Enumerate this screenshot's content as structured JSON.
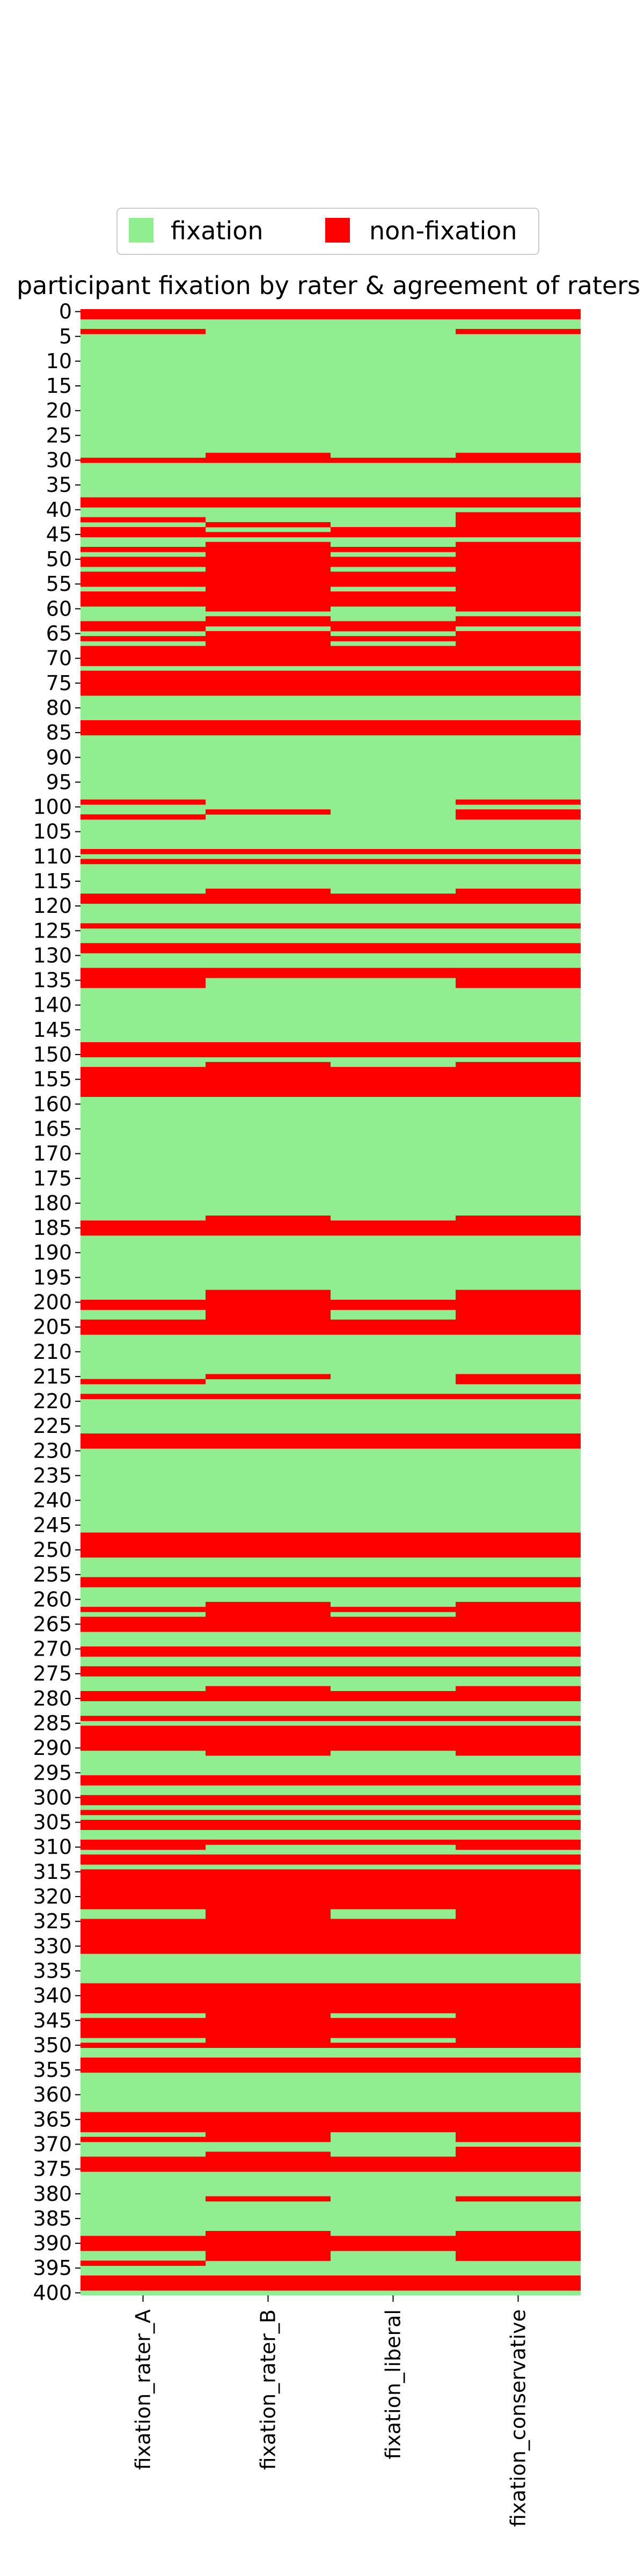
{
  "chart_data": {
    "type": "heatmap",
    "title": "participant fixation by rater & agreement of raters",
    "columns": [
      "fixation_rater_A",
      "fixation_rater_B",
      "fixation_liberal",
      "fixation_conservative"
    ],
    "legend": [
      {
        "label": "fixation",
        "color": "#90EE90"
      },
      {
        "label": "non-fixation",
        "color": "#FF0000"
      }
    ],
    "legend_position": "top-center",
    "y_range": [
      0,
      400
    ],
    "y_ticks": [
      0,
      5,
      10,
      15,
      20,
      25,
      30,
      35,
      40,
      45,
      50,
      55,
      60,
      65,
      70,
      75,
      80,
      85,
      90,
      95,
      100,
      105,
      110,
      115,
      120,
      125,
      130,
      135,
      140,
      145,
      150,
      155,
      160,
      165,
      170,
      175,
      180,
      185,
      190,
      195,
      200,
      205,
      210,
      215,
      220,
      225,
      230,
      235,
      240,
      245,
      250,
      255,
      260,
      265,
      270,
      275,
      280,
      285,
      290,
      295,
      300,
      305,
      310,
      315,
      320,
      325,
      330,
      335,
      340,
      345,
      350,
      355,
      360,
      365,
      370,
      375,
      380,
      385,
      390,
      395,
      400
    ],
    "y_tick_labels": [
      "0",
      "5",
      "10",
      "15",
      "20",
      "25",
      "30",
      "35",
      "40",
      "45",
      "50",
      "55",
      "60",
      "65",
      "70",
      "75",
      "80",
      "85",
      "90",
      "95",
      "100",
      "105",
      "110",
      "115",
      "120",
      "125",
      "130",
      "135",
      "140",
      "145",
      "150",
      "155",
      "160",
      "165",
      "170",
      "175",
      "180",
      "185",
      "190",
      "195",
      "200",
      "205",
      "210",
      "215",
      "220",
      "225",
      "230",
      "235",
      "240",
      "245",
      "250",
      "255",
      "260",
      "265",
      "270",
      "275",
      "280",
      "285",
      "290",
      "295",
      "300",
      "305",
      "310",
      "315",
      "320",
      "325",
      "330",
      "335",
      "340",
      "345",
      "350",
      "355",
      "360",
      "365",
      "370",
      "375",
      "380",
      "385",
      "390",
      "395",
      "400"
    ],
    "non_fixation_segments": {
      "fixation_rater_A": [
        [
          0,
          2
        ],
        [
          4,
          5
        ],
        [
          30,
          31
        ],
        [
          38,
          40
        ],
        [
          42,
          43
        ],
        [
          44,
          46
        ],
        [
          48,
          49
        ],
        [
          50,
          52
        ],
        [
          53,
          56
        ],
        [
          57,
          60
        ],
        [
          63,
          65
        ],
        [
          66,
          67
        ],
        [
          68,
          72
        ],
        [
          73,
          78
        ],
        [
          83,
          86
        ],
        [
          99,
          100
        ],
        [
          102,
          103
        ],
        [
          109,
          110
        ],
        [
          111,
          112
        ],
        [
          118,
          120
        ],
        [
          124,
          125
        ],
        [
          128,
          130
        ],
        [
          133,
          137
        ],
        [
          148,
          151
        ],
        [
          153,
          159
        ],
        [
          184,
          187
        ],
        [
          200,
          202
        ],
        [
          204,
          207
        ],
        [
          216,
          217
        ],
        [
          219,
          220
        ],
        [
          227,
          230
        ],
        [
          247,
          252
        ],
        [
          256,
          258
        ],
        [
          262,
          263
        ],
        [
          264,
          267
        ],
        [
          270,
          272
        ],
        [
          274,
          276
        ],
        [
          279,
          281
        ],
        [
          284,
          285
        ],
        [
          286,
          291
        ],
        [
          296,
          298
        ],
        [
          300,
          302
        ],
        [
          303,
          304
        ],
        [
          305,
          307
        ],
        [
          309,
          311
        ],
        [
          312,
          314
        ],
        [
          315,
          317
        ],
        [
          317,
          323
        ],
        [
          325,
          332
        ],
        [
          338,
          344
        ],
        [
          345,
          349
        ],
        [
          350,
          351
        ],
        [
          353,
          356
        ],
        [
          364,
          368
        ],
        [
          369,
          370
        ],
        [
          373,
          376
        ],
        [
          389,
          392
        ],
        [
          394,
          395
        ],
        [
          397,
          400
        ]
      ],
      "fixation_rater_B": [
        [
          0,
          2
        ],
        [
          29,
          31
        ],
        [
          38,
          40
        ],
        [
          43,
          44
        ],
        [
          45,
          46
        ],
        [
          47,
          50
        ],
        [
          50,
          61
        ],
        [
          62,
          64
        ],
        [
          65,
          72
        ],
        [
          73,
          78
        ],
        [
          83,
          86
        ],
        [
          101,
          102
        ],
        [
          109,
          110
        ],
        [
          111,
          112
        ],
        [
          117,
          120
        ],
        [
          124,
          125
        ],
        [
          128,
          130
        ],
        [
          133,
          135
        ],
        [
          148,
          151
        ],
        [
          152,
          159
        ],
        [
          183,
          187
        ],
        [
          198,
          207
        ],
        [
          215,
          216
        ],
        [
          219,
          220
        ],
        [
          227,
          230
        ],
        [
          247,
          252
        ],
        [
          256,
          258
        ],
        [
          261,
          267
        ],
        [
          270,
          272
        ],
        [
          274,
          276
        ],
        [
          278,
          281
        ],
        [
          284,
          285
        ],
        [
          286,
          292
        ],
        [
          296,
          298
        ],
        [
          300,
          302
        ],
        [
          303,
          304
        ],
        [
          305,
          307
        ],
        [
          309,
          310
        ],
        [
          312,
          314
        ],
        [
          315,
          332
        ],
        [
          338,
          349
        ],
        [
          349,
          351
        ],
        [
          353,
          356
        ],
        [
          364,
          370
        ],
        [
          372,
          376
        ],
        [
          381,
          382
        ],
        [
          388,
          394
        ],
        [
          397,
          400
        ]
      ],
      "fixation_liberal": [
        [
          0,
          2
        ],
        [
          30,
          31
        ],
        [
          38,
          40
        ],
        [
          44,
          46
        ],
        [
          48,
          49
        ],
        [
          50,
          52
        ],
        [
          53,
          56
        ],
        [
          57,
          60
        ],
        [
          63,
          65
        ],
        [
          66,
          67
        ],
        [
          68,
          72
        ],
        [
          73,
          78
        ],
        [
          83,
          86
        ],
        [
          109,
          110
        ],
        [
          111,
          112
        ],
        [
          118,
          120
        ],
        [
          124,
          125
        ],
        [
          128,
          130
        ],
        [
          133,
          135
        ],
        [
          148,
          151
        ],
        [
          153,
          159
        ],
        [
          184,
          187
        ],
        [
          200,
          202
        ],
        [
          204,
          207
        ],
        [
          219,
          220
        ],
        [
          227,
          230
        ],
        [
          247,
          252
        ],
        [
          256,
          258
        ],
        [
          262,
          263
        ],
        [
          264,
          267
        ],
        [
          270,
          272
        ],
        [
          274,
          276
        ],
        [
          279,
          281
        ],
        [
          284,
          285
        ],
        [
          286,
          291
        ],
        [
          296,
          298
        ],
        [
          300,
          302
        ],
        [
          303,
          304
        ],
        [
          305,
          307
        ],
        [
          309,
          310
        ],
        [
          312,
          314
        ],
        [
          315,
          323
        ],
        [
          325,
          332
        ],
        [
          338,
          344
        ],
        [
          345,
          349
        ],
        [
          350,
          351
        ],
        [
          353,
          356
        ],
        [
          364,
          368
        ],
        [
          373,
          376
        ],
        [
          389,
          392
        ],
        [
          397,
          400
        ]
      ],
      "fixation_conservative": [
        [
          0,
          2
        ],
        [
          4,
          5
        ],
        [
          29,
          31
        ],
        [
          38,
          40
        ],
        [
          41,
          43
        ],
        [
          43,
          46
        ],
        [
          47,
          50
        ],
        [
          50,
          61
        ],
        [
          62,
          64
        ],
        [
          65,
          72
        ],
        [
          73,
          78
        ],
        [
          83,
          86
        ],
        [
          99,
          100
        ],
        [
          101,
          103
        ],
        [
          109,
          110
        ],
        [
          111,
          112
        ],
        [
          117,
          120
        ],
        [
          124,
          125
        ],
        [
          128,
          130
        ],
        [
          133,
          137
        ],
        [
          148,
          151
        ],
        [
          152,
          159
        ],
        [
          183,
          187
        ],
        [
          198,
          207
        ],
        [
          215,
          217
        ],
        [
          219,
          220
        ],
        [
          227,
          230
        ],
        [
          247,
          252
        ],
        [
          256,
          258
        ],
        [
          261,
          267
        ],
        [
          270,
          272
        ],
        [
          274,
          276
        ],
        [
          278,
          281
        ],
        [
          284,
          285
        ],
        [
          286,
          292
        ],
        [
          296,
          298
        ],
        [
          300,
          302
        ],
        [
          303,
          304
        ],
        [
          305,
          307
        ],
        [
          309,
          311
        ],
        [
          312,
          314
        ],
        [
          315,
          332
        ],
        [
          338,
          349
        ],
        [
          349,
          351
        ],
        [
          353,
          356
        ],
        [
          364,
          370
        ],
        [
          371,
          376
        ],
        [
          381,
          382
        ],
        [
          388,
          394
        ],
        [
          397,
          400
        ]
      ]
    }
  }
}
